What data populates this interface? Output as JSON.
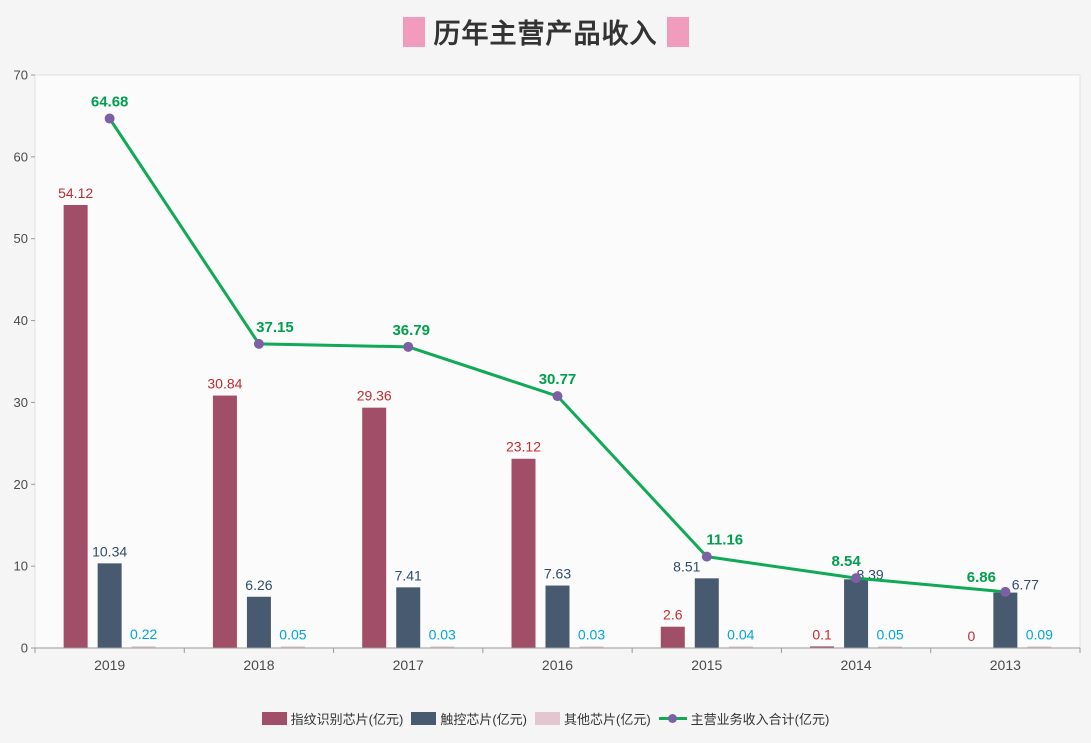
{
  "colors": {
    "background": "#f5f5f6",
    "plot_background": "#fbfbfc",
    "plot_border": "#e0e0e0",
    "axis_line": "#9a9a9a",
    "axis_text": "#4a4a4a",
    "title_text": "#333333",
    "title_decoration": "#f19cbd"
  },
  "chart_data": {
    "type": "bar",
    "title": "历年主营产品收入",
    "categories": [
      "2019",
      "2018",
      "2017",
      "2016",
      "2015",
      "2014",
      "2013"
    ],
    "series": [
      {
        "name": "指纹识别芯片(亿元)",
        "type": "bar",
        "color": "#a14f68",
        "label_color": "#c02c2c",
        "values": [
          54.12,
          30.84,
          29.36,
          23.12,
          2.6,
          0.1,
          0
        ]
      },
      {
        "name": "触控芯片(亿元)",
        "type": "bar",
        "color": "#485a70",
        "label_color": "#2e4d6d",
        "values": [
          10.34,
          6.26,
          7.41,
          7.63,
          8.51,
          8.39,
          6.77
        ]
      },
      {
        "name": "其他芯片(亿元)",
        "type": "bar",
        "color": "#e4c6d1",
        "label_color": "#00a5dc",
        "values": [
          0.22,
          0.05,
          0.03,
          0.03,
          0.04,
          0.05,
          0.09
        ]
      },
      {
        "name": "主营业务收入合计(亿元)",
        "type": "line",
        "color": "#10a956",
        "marker_color": "#7d5fa5",
        "label_color": "#009f4d",
        "values": [
          64.68,
          37.15,
          36.79,
          30.77,
          11.16,
          8.54,
          6.86
        ]
      }
    ],
    "xlabel": "",
    "ylabel": "",
    "ylim": [
      0,
      70
    ],
    "y_ticks": [
      0,
      10,
      20,
      30,
      40,
      50,
      60,
      70
    ],
    "grid": false,
    "legend_position": "bottom"
  }
}
